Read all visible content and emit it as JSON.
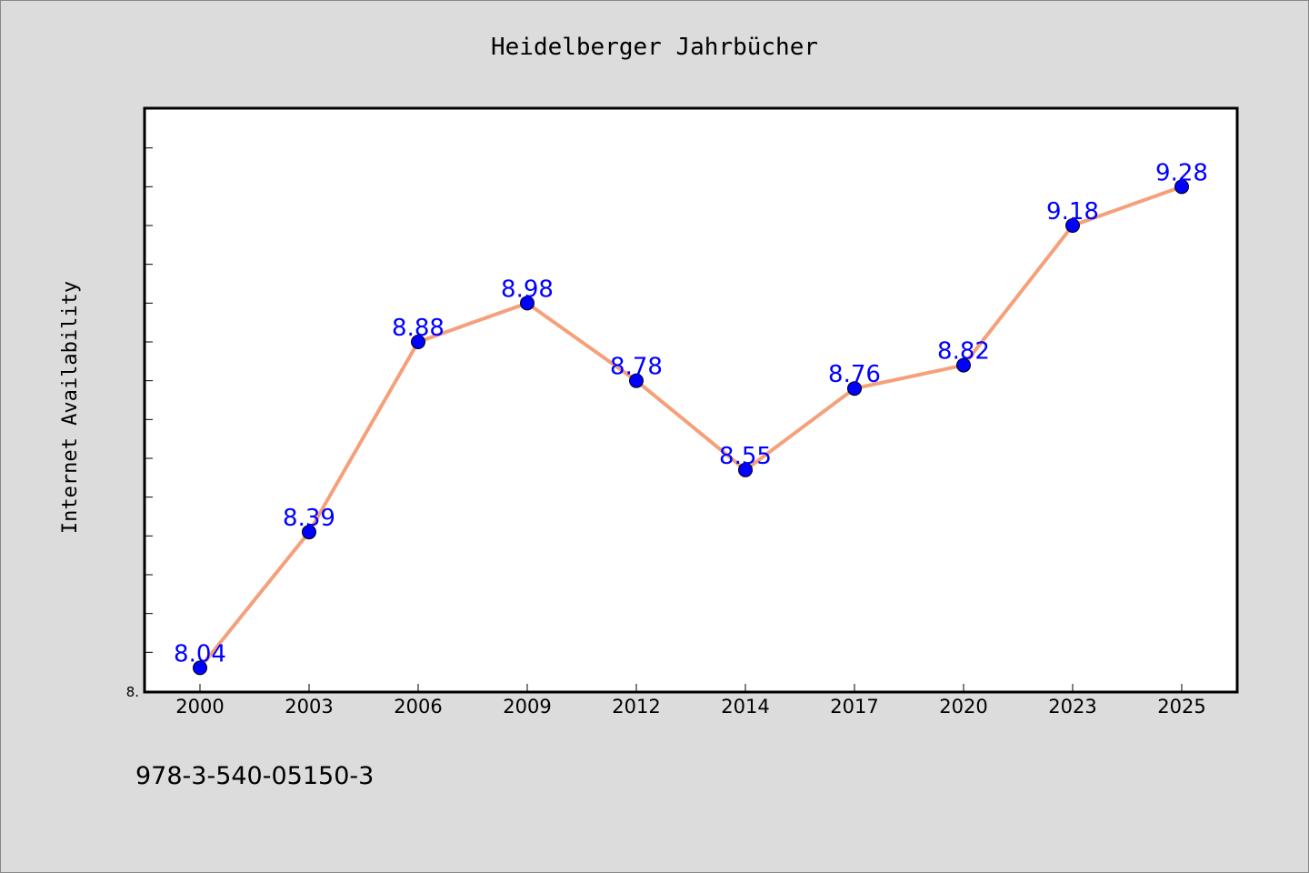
{
  "chart_data": {
    "type": "line",
    "title": "Heidelberger Jahrbücher",
    "ylabel": "Internet Availability",
    "xlabel": "",
    "categories": [
      "2000",
      "2003",
      "2006",
      "2009",
      "2012",
      "2014",
      "2017",
      "2020",
      "2023",
      "2025"
    ],
    "series": [
      {
        "values": [
          8.04,
          8.39,
          8.88,
          8.98,
          8.78,
          8.55,
          8.76,
          8.82,
          9.18,
          9.28
        ]
      }
    ],
    "data_labels": [
      "8.04",
      "8.39",
      "8.88",
      "8.98",
      "8.78",
      "8.55",
      "8.76",
      "8.82",
      "9.18",
      "9.28"
    ],
    "ylim": [
      7.98,
      9.48
    ],
    "y_tick_label": "8.",
    "grid": false,
    "legend": "none",
    "colors": {
      "line": "#f5a07a",
      "marker": "#0000ff",
      "data_label": "#0000ff",
      "background": "#dcdcdc",
      "plot_background": "#ffffff"
    }
  },
  "footer": {
    "isbn": "978-3-540-05150-3"
  }
}
